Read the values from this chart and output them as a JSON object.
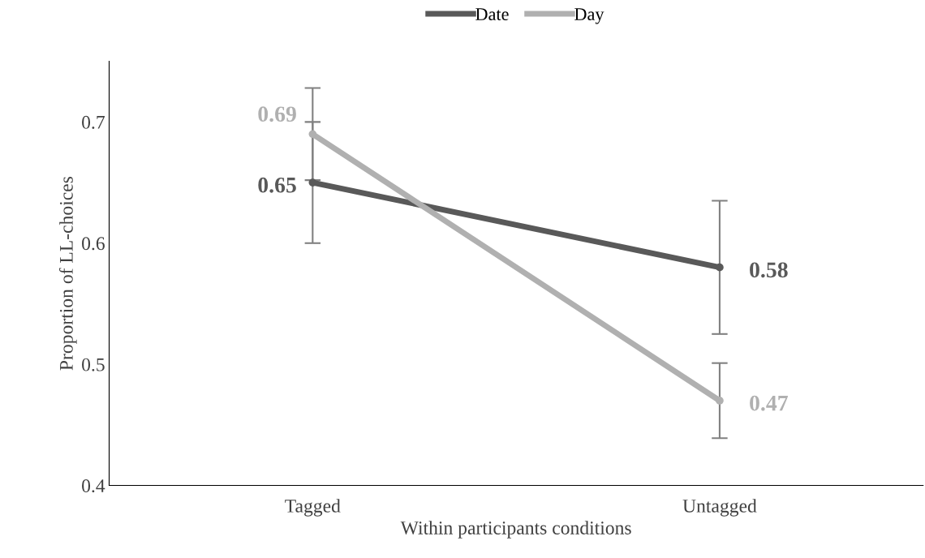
{
  "chart_data": {
    "type": "line",
    "xlabel": "Within participants conditions",
    "ylabel": "Proportion of LL-choices",
    "categories": [
      "Tagged",
      "Untagged"
    ],
    "series": [
      {
        "name": "Date",
        "color": "#595959",
        "values": [
          0.65,
          0.58
        ],
        "errors": [
          0.05,
          0.055
        ]
      },
      {
        "name": "Day",
        "color": "#b0b0b0",
        "values": [
          0.69,
          0.47
        ],
        "errors": [
          0.038,
          0.031
        ]
      }
    ],
    "ylim": [
      0.4,
      0.75
    ],
    "yticks": [
      0.4,
      0.5,
      0.6,
      0.7
    ],
    "grid": false,
    "legend": "top",
    "marker": "circle",
    "line_style": "solid",
    "data_labels": true
  }
}
